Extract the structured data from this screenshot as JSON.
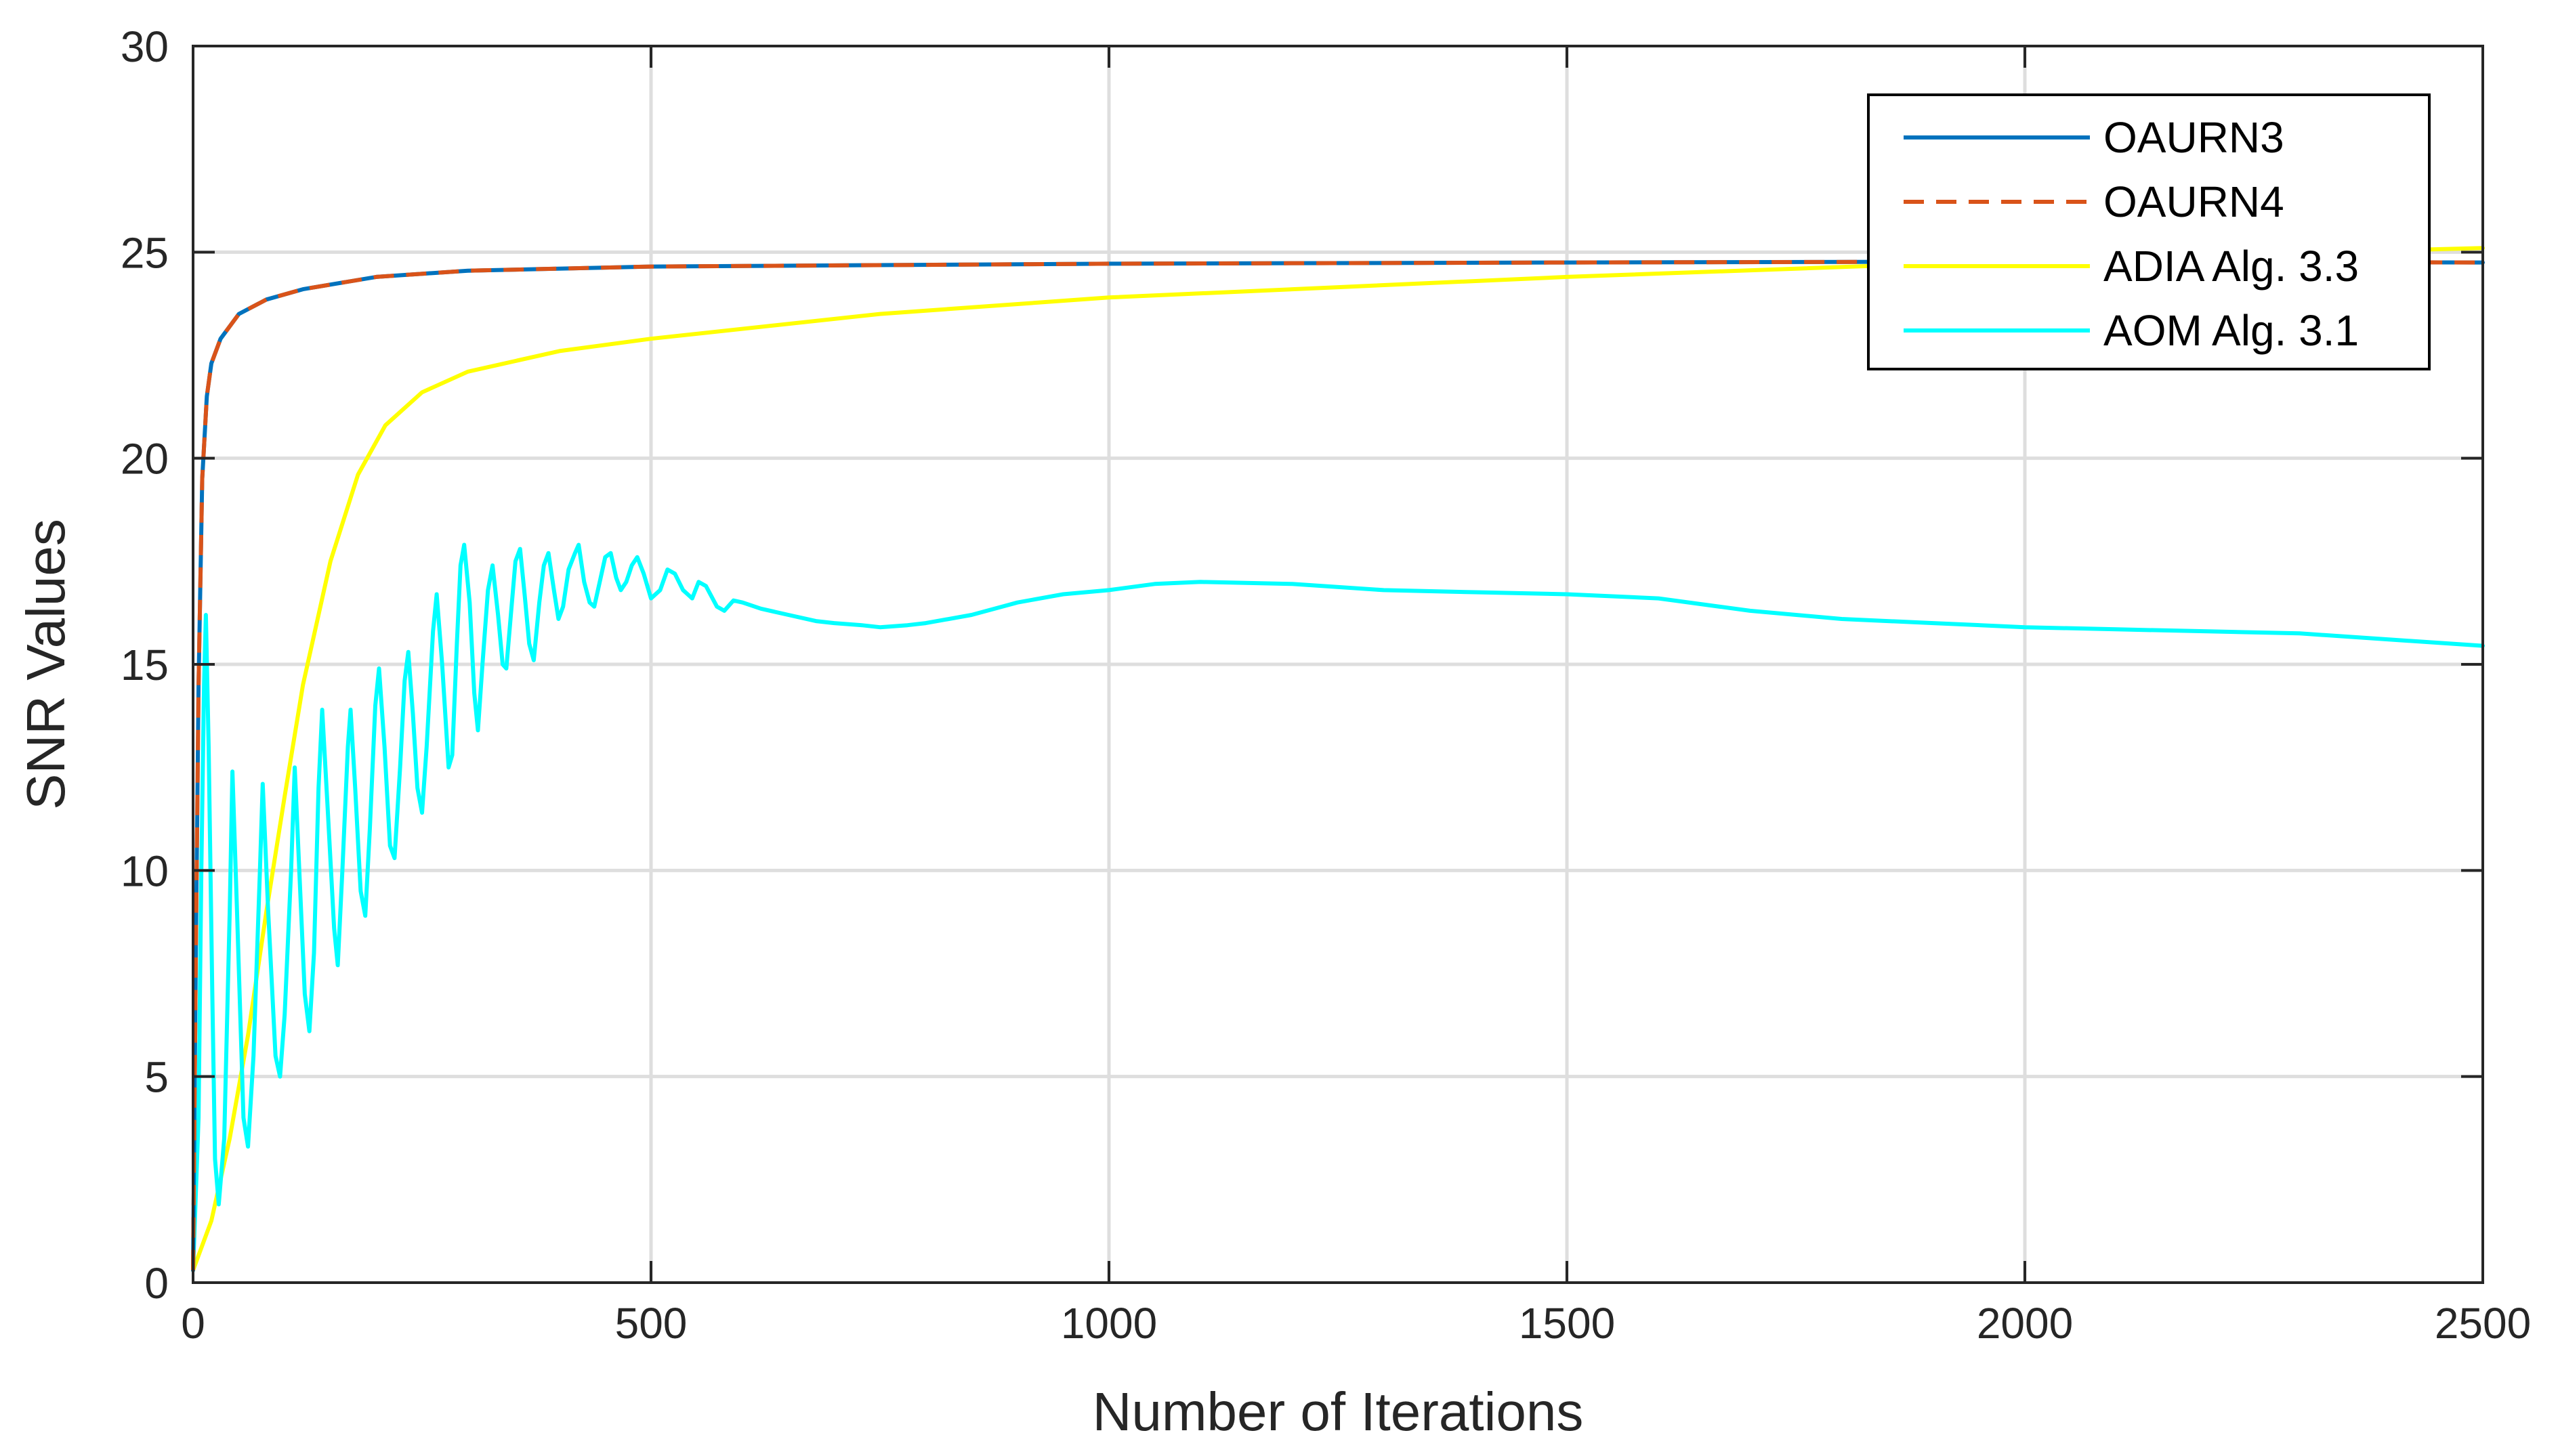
{
  "chart_data": {
    "type": "line",
    "title": "",
    "xlabel": "Number of Iterations",
    "ylabel": "SNR Values",
    "xlim": [
      0,
      2500
    ],
    "ylim": [
      0,
      30
    ],
    "xticks": [
      0,
      500,
      1000,
      1500,
      2000,
      2500
    ],
    "yticks": [
      0,
      5,
      10,
      15,
      20,
      25,
      30
    ],
    "xtick_labels": [
      "0",
      "500",
      "1000",
      "1500",
      "2000",
      "2500"
    ],
    "ytick_labels": [
      "0",
      "5",
      "10",
      "15",
      "20",
      "25",
      "30"
    ],
    "grid": true,
    "legend_position": "top-right",
    "series": [
      {
        "name": "OAURN3",
        "color": "#0072BD",
        "dash": "solid",
        "points": [
          [
            0,
            0.3
          ],
          [
            3,
            8
          ],
          [
            6,
            14.5
          ],
          [
            10,
            19.5
          ],
          [
            15,
            21.5
          ],
          [
            20,
            22.3
          ],
          [
            30,
            22.9
          ],
          [
            50,
            23.5
          ],
          [
            80,
            23.85
          ],
          [
            120,
            24.1
          ],
          [
            200,
            24.4
          ],
          [
            300,
            24.55
          ],
          [
            500,
            24.65
          ],
          [
            1000,
            24.72
          ],
          [
            1500,
            24.75
          ],
          [
            2000,
            24.77
          ],
          [
            2500,
            24.75
          ]
        ]
      },
      {
        "name": "OAURN4",
        "color": "#D95319",
        "dash": "dashed",
        "points": [
          [
            0,
            0.3
          ],
          [
            3,
            8
          ],
          [
            6,
            14.5
          ],
          [
            10,
            19.5
          ],
          [
            15,
            21.5
          ],
          [
            20,
            22.3
          ],
          [
            30,
            22.9
          ],
          [
            50,
            23.5
          ],
          [
            80,
            23.85
          ],
          [
            120,
            24.1
          ],
          [
            200,
            24.4
          ],
          [
            300,
            24.55
          ],
          [
            500,
            24.65
          ],
          [
            1000,
            24.72
          ],
          [
            1500,
            24.75
          ],
          [
            2000,
            24.77
          ],
          [
            2500,
            24.75
          ]
        ]
      },
      {
        "name": "ADIA Alg. 3.3",
        "color": "#FFFF00",
        "dash": "solid",
        "points": [
          [
            0,
            0.3
          ],
          [
            20,
            1.5
          ],
          [
            40,
            3.5
          ],
          [
            60,
            6
          ],
          [
            80,
            9
          ],
          [
            100,
            11.8
          ],
          [
            120,
            14.5
          ],
          [
            150,
            17.5
          ],
          [
            180,
            19.6
          ],
          [
            210,
            20.8
          ],
          [
            250,
            21.6
          ],
          [
            300,
            22.1
          ],
          [
            400,
            22.6
          ],
          [
            500,
            22.9
          ],
          [
            750,
            23.5
          ],
          [
            1000,
            23.9
          ],
          [
            1250,
            24.15
          ],
          [
            1500,
            24.4
          ],
          [
            1750,
            24.6
          ],
          [
            2000,
            24.8
          ],
          [
            2250,
            24.95
          ],
          [
            2500,
            25.1
          ]
        ]
      },
      {
        "name": "AOM Alg. 3.1",
        "color": "#00FFFF",
        "dash": "solid",
        "points": [
          [
            0,
            0.3
          ],
          [
            6,
            4
          ],
          [
            9,
            10
          ],
          [
            12,
            14.5
          ],
          [
            14,
            16.2
          ],
          [
            17,
            13
          ],
          [
            21,
            7
          ],
          [
            24,
            3
          ],
          [
            28,
            1.9
          ],
          [
            34,
            3.5
          ],
          [
            40,
            9
          ],
          [
            43,
            12.4
          ],
          [
            48,
            9
          ],
          [
            55,
            4
          ],
          [
            60,
            3.3
          ],
          [
            66,
            5.5
          ],
          [
            73,
            10
          ],
          [
            76,
            12.1
          ],
          [
            82,
            9
          ],
          [
            90,
            5.5
          ],
          [
            95,
            5
          ],
          [
            100,
            6.5
          ],
          [
            107,
            10
          ],
          [
            111,
            12.5
          ],
          [
            116,
            10
          ],
          [
            122,
            7
          ],
          [
            127,
            6.1
          ],
          [
            132,
            8
          ],
          [
            137,
            12
          ],
          [
            141,
            13.9
          ],
          [
            147,
            11.5
          ],
          [
            154,
            8.6
          ],
          [
            158,
            7.7
          ],
          [
            163,
            10
          ],
          [
            169,
            13
          ],
          [
            172,
            13.9
          ],
          [
            177,
            12
          ],
          [
            183,
            9.5
          ],
          [
            188,
            8.9
          ],
          [
            193,
            11
          ],
          [
            199,
            14
          ],
          [
            203,
            14.9
          ],
          [
            209,
            13
          ],
          [
            215,
            10.6
          ],
          [
            220,
            10.3
          ],
          [
            226,
            12.5
          ],
          [
            231,
            14.6
          ],
          [
            235,
            15.3
          ],
          [
            240,
            13.8
          ],
          [
            245,
            12
          ],
          [
            250,
            11.4
          ],
          [
            255,
            13
          ],
          [
            262,
            15.8
          ],
          [
            266,
            16.7
          ],
          [
            272,
            15
          ],
          [
            279,
            12.5
          ],
          [
            283,
            12.8
          ],
          [
            288,
            15.5
          ],
          [
            292,
            17.4
          ],
          [
            296,
            17.9
          ],
          [
            302,
            16.5
          ],
          [
            307,
            14.3
          ],
          [
            311,
            13.4
          ],
          [
            316,
            15
          ],
          [
            322,
            16.8
          ],
          [
            327,
            17.4
          ],
          [
            333,
            16.2
          ],
          [
            338,
            15
          ],
          [
            342,
            14.9
          ],
          [
            347,
            16.2
          ],
          [
            352,
            17.5
          ],
          [
            357,
            17.8
          ],
          [
            362,
            16.7
          ],
          [
            367,
            15.5
          ],
          [
            372,
            15.1
          ],
          [
            378,
            16.5
          ],
          [
            383,
            17.4
          ],
          [
            388,
            17.7
          ],
          [
            394,
            16.8
          ],
          [
            399,
            16.1
          ],
          [
            404,
            16.4
          ],
          [
            410,
            17.3
          ],
          [
            417,
            17.7
          ],
          [
            421,
            17.9
          ],
          [
            427,
            17
          ],
          [
            433,
            16.5
          ],
          [
            438,
            16.4
          ],
          [
            444,
            17
          ],
          [
            450,
            17.6
          ],
          [
            456,
            17.7
          ],
          [
            462,
            17.1
          ],
          [
            467,
            16.8
          ],
          [
            473,
            17
          ],
          [
            479,
            17.4
          ],
          [
            485,
            17.6
          ],
          [
            492,
            17.2
          ],
          [
            500,
            16.6
          ],
          [
            510,
            16.8
          ],
          [
            518,
            17.3
          ],
          [
            526,
            17.2
          ],
          [
            535,
            16.8
          ],
          [
            545,
            16.6
          ],
          [
            552,
            17
          ],
          [
            560,
            16.9
          ],
          [
            572,
            16.4
          ],
          [
            580,
            16.3
          ],
          [
            590,
            16.55
          ],
          [
            600,
            16.5
          ],
          [
            620,
            16.35
          ],
          [
            650,
            16.2
          ],
          [
            680,
            16.05
          ],
          [
            700,
            16
          ],
          [
            730,
            15.95
          ],
          [
            750,
            15.9
          ],
          [
            780,
            15.95
          ],
          [
            800,
            16
          ],
          [
            850,
            16.2
          ],
          [
            900,
            16.5
          ],
          [
            950,
            16.7
          ],
          [
            1000,
            16.8
          ],
          [
            1050,
            16.95
          ],
          [
            1100,
            17
          ],
          [
            1200,
            16.95
          ],
          [
            1300,
            16.8
          ],
          [
            1400,
            16.75
          ],
          [
            1500,
            16.7
          ],
          [
            1600,
            16.6
          ],
          [
            1700,
            16.3
          ],
          [
            1800,
            16.1
          ],
          [
            1900,
            16
          ],
          [
            2000,
            15.9
          ],
          [
            2100,
            15.85
          ],
          [
            2200,
            15.8
          ],
          [
            2300,
            15.75
          ],
          [
            2400,
            15.6
          ],
          [
            2500,
            15.45
          ]
        ]
      }
    ]
  }
}
